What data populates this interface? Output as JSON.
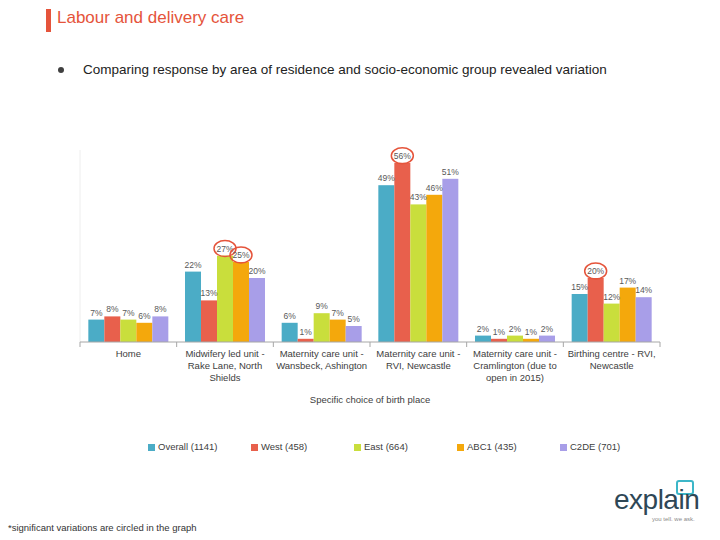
{
  "chart_data": {
    "type": "bar",
    "title": "Labour and delivery care",
    "subtitle": "Comparing response by area of residence and socio-economic group revealed variation",
    "x_label": "Specific choice of birth place",
    "footnote": "*significant variations are circled in the graph",
    "logo": "explain",
    "logo_tagline": "you tell. we ask.",
    "categories": [
      "Home",
      "Midwifery led unit - Rake Lane, North Shields",
      "Maternity care unit - Wansbeck, Ashington",
      "Maternity care unit - RVI, Newcastle",
      "Maternity care unit - Cramlington (due to open in 2015)",
      "Birthing centre - RVI, Newcastle"
    ],
    "series": [
      {
        "name": "Overall (1141)",
        "color": "#4bacc6",
        "values": [
          7,
          22,
          6,
          49,
          2,
          15
        ],
        "value_labels": [
          "7%",
          "22%",
          "6%",
          "49%",
          "2%",
          "15%"
        ],
        "circled": [
          false,
          false,
          false,
          false,
          false,
          false
        ]
      },
      {
        "name": "West (458)",
        "color": "#e8604c",
        "values": [
          8,
          13,
          1,
          56,
          1,
          20
        ],
        "value_labels": [
          "8%",
          "13%",
          "1%",
          "56%",
          "1%",
          "20%"
        ],
        "circled": [
          false,
          false,
          false,
          true,
          false,
          true
        ]
      },
      {
        "name": "East (664)",
        "color": "#c9de3c",
        "values": [
          7,
          27,
          9,
          43,
          2,
          12
        ],
        "value_labels": [
          "7%",
          "27%",
          "9%",
          "43%",
          "2%",
          "12%"
        ],
        "circled": [
          false,
          true,
          false,
          false,
          false,
          false
        ]
      },
      {
        "name": "ABC1 (435)",
        "color": "#f4a80c",
        "values": [
          6,
          25,
          7,
          46,
          1,
          17
        ],
        "value_labels": [
          "6%",
          "25%",
          "7%",
          "46%",
          "1%",
          "17%"
        ],
        "circled": [
          false,
          true,
          false,
          false,
          false,
          false
        ]
      },
      {
        "name": "C2DE (701)",
        "color": "#a89ee8",
        "values": [
          8,
          20,
          5,
          51,
          2,
          14
        ],
        "value_labels": [
          "8%",
          "20%",
          "5%",
          "51%",
          "2%",
          "14%"
        ],
        "circled": [
          false,
          false,
          false,
          false,
          false,
          false
        ]
      }
    ],
    "ylim": [
      0,
      60
    ],
    "data_labels": true,
    "tick_labels": "x",
    "grid": false,
    "legend": "bottom"
  }
}
